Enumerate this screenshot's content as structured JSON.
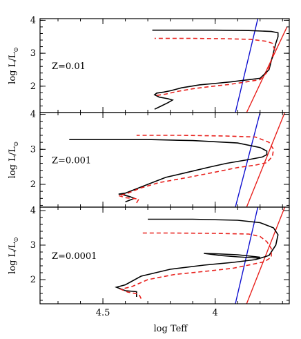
{
  "chart_data": {
    "type": "line",
    "xlabel": "log Teff",
    "ylabel_base": "log L/L",
    "ylabel_sub": "⊙",
    "xlim": [
      4.78,
      3.67
    ],
    "xticks": [
      4.5,
      4.0
    ],
    "xtick_labels": [
      "4.5",
      "4"
    ],
    "colors": {
      "model_a": "#000000",
      "model_b": "#e8201c",
      "blue_edge": "#1010d0",
      "red_edge": "#e8201c"
    },
    "panels": [
      {
        "label": "Z=0.01",
        "ylim": [
          1.2,
          4.05
        ],
        "yticks": [
          2,
          3,
          4
        ],
        "ytick_labels": [
          "2",
          "3",
          "4"
        ],
        "blue_edge": [
          [
            3.91,
            1.2
          ],
          [
            3.81,
            4.05
          ]
        ],
        "red_edge": [
          [
            3.86,
            1.2
          ],
          [
            3.68,
            3.8
          ]
        ],
        "series": [
          {
            "name": "solid",
            "color": "#000000",
            "dashed": false,
            "points": [
              [
                4.27,
                1.3
              ],
              [
                4.24,
                1.4
              ],
              [
                4.21,
                1.5
              ],
              [
                4.19,
                1.58
              ],
              [
                4.21,
                1.62
              ],
              [
                4.25,
                1.67
              ],
              [
                4.27,
                1.74
              ],
              [
                4.26,
                1.79
              ],
              [
                4.23,
                1.82
              ],
              [
                4.2,
                1.86
              ],
              [
                4.15,
                1.95
              ],
              [
                4.07,
                2.04
              ],
              [
                3.99,
                2.09
              ],
              [
                3.93,
                2.13
              ],
              [
                3.87,
                2.18
              ],
              [
                3.8,
                2.24
              ],
              [
                3.76,
                2.5
              ],
              [
                3.745,
                2.9
              ],
              [
                3.73,
                3.3
              ],
              [
                3.72,
                3.5
              ],
              [
                3.72,
                3.62
              ],
              [
                3.75,
                3.66
              ],
              [
                3.85,
                3.69
              ],
              [
                4.0,
                3.7
              ],
              [
                4.15,
                3.7
              ],
              [
                4.28,
                3.7
              ]
            ]
          },
          {
            "name": "dashed",
            "color": "#e8201c",
            "dashed": true,
            "points": [
              [
                4.26,
                1.72
              ],
              [
                4.22,
                1.76
              ],
              [
                4.17,
                1.84
              ],
              [
                4.1,
                1.92
              ],
              [
                4.02,
                1.99
              ],
              [
                3.94,
                2.05
              ],
              [
                3.87,
                2.12
              ],
              [
                3.8,
                2.2
              ],
              [
                3.765,
                2.45
              ],
              [
                3.75,
                2.8
              ],
              [
                3.735,
                3.1
              ],
              [
                3.745,
                3.3
              ],
              [
                3.77,
                3.36
              ],
              [
                3.84,
                3.42
              ],
              [
                3.95,
                3.44
              ],
              [
                4.1,
                3.45
              ],
              [
                4.27,
                3.45
              ]
            ]
          }
        ]
      },
      {
        "label": "Z=0.001",
        "ylim": [
          1.35,
          4.05
        ],
        "yticks": [
          2,
          3,
          4
        ],
        "ytick_labels": [
          "2",
          "3",
          "4"
        ],
        "blue_edge": [
          [
            3.91,
            1.35
          ],
          [
            3.8,
            4.05
          ]
        ],
        "red_edge": [
          [
            3.86,
            1.35
          ],
          [
            3.69,
            4.05
          ]
        ],
        "series": [
          {
            "name": "solid",
            "color": "#000000",
            "dashed": false,
            "points": [
              [
                4.4,
                1.5
              ],
              [
                4.36,
                1.6
              ],
              [
                4.38,
                1.65
              ],
              [
                4.42,
                1.72
              ],
              [
                4.43,
                1.72
              ],
              [
                4.4,
                1.75
              ],
              [
                4.3,
                2.0
              ],
              [
                4.22,
                2.2
              ],
              [
                4.12,
                2.35
              ],
              [
                4.02,
                2.5
              ],
              [
                3.95,
                2.6
              ],
              [
                3.84,
                2.72
              ],
              [
                3.79,
                2.78
              ],
              [
                3.77,
                2.85
              ],
              [
                3.77,
                2.95
              ],
              [
                3.8,
                3.05
              ],
              [
                3.9,
                3.18
              ],
              [
                4.1,
                3.25
              ],
              [
                4.3,
                3.28
              ],
              [
                4.65,
                3.28
              ]
            ]
          },
          {
            "name": "dashed",
            "color": "#e8201c",
            "dashed": true,
            "points": [
              [
                4.35,
                1.47
              ],
              [
                4.34,
                1.58
              ],
              [
                4.4,
                1.62
              ],
              [
                4.43,
                1.68
              ],
              [
                4.4,
                1.72
              ],
              [
                4.33,
                1.9
              ],
              [
                4.25,
                2.05
              ],
              [
                4.12,
                2.2
              ],
              [
                4.0,
                2.35
              ],
              [
                3.9,
                2.48
              ],
              [
                3.82,
                2.55
              ],
              [
                3.77,
                2.62
              ],
              [
                3.745,
                2.8
              ],
              [
                3.74,
                3.0
              ],
              [
                3.76,
                3.2
              ],
              [
                3.82,
                3.35
              ],
              [
                3.95,
                3.38
              ],
              [
                4.15,
                3.4
              ],
              [
                4.35,
                3.4
              ]
            ]
          }
        ]
      },
      {
        "label": "Z=0.0001",
        "ylim": [
          1.3,
          4.1
        ],
        "yticks": [
          2,
          3,
          4
        ],
        "ytick_labels": [
          "2",
          "3",
          "4"
        ],
        "blue_edge": [
          [
            3.91,
            1.3
          ],
          [
            3.81,
            4.1
          ]
        ],
        "red_edge": [
          [
            3.86,
            1.3
          ],
          [
            3.69,
            4.1
          ]
        ],
        "series": [
          {
            "name": "solid",
            "color": "#000000",
            "dashed": false,
            "points": [
              [
                4.35,
                1.5
              ],
              [
                4.35,
                1.65
              ],
              [
                4.4,
                1.68
              ],
              [
                4.44,
                1.78
              ],
              [
                4.4,
                1.85
              ],
              [
                4.33,
                2.1
              ],
              [
                4.2,
                2.3
              ],
              [
                4.05,
                2.42
              ],
              [
                3.92,
                2.5
              ],
              [
                3.82,
                2.58
              ],
              [
                3.76,
                2.7
              ],
              [
                3.73,
                3.0
              ],
              [
                3.72,
                3.3
              ],
              [
                3.74,
                3.5
              ],
              [
                3.8,
                3.65
              ],
              [
                3.9,
                3.72
              ],
              [
                4.1,
                3.75
              ],
              [
                4.3,
                3.75
              ]
            ]
          },
          {
            "name": "solid-loop",
            "color": "#000000",
            "dashed": false,
            "points": [
              [
                3.8,
                2.65
              ],
              [
                3.9,
                2.72
              ],
              [
                4.0,
                2.75
              ],
              [
                4.05,
                2.76
              ],
              [
                3.98,
                2.7
              ],
              [
                3.9,
                2.66
              ],
              [
                3.8,
                2.62
              ]
            ]
          },
          {
            "name": "dashed",
            "color": "#e8201c",
            "dashed": true,
            "points": [
              [
                4.33,
                1.45
              ],
              [
                4.34,
                1.58
              ],
              [
                4.39,
                1.64
              ],
              [
                4.42,
                1.72
              ],
              [
                4.37,
                1.8
              ],
              [
                4.3,
                2.0
              ],
              [
                4.18,
                2.15
              ],
              [
                4.03,
                2.25
              ],
              [
                3.92,
                2.33
              ],
              [
                3.83,
                2.45
              ],
              [
                3.78,
                2.52
              ],
              [
                3.75,
                2.65
              ],
              [
                3.75,
                2.9
              ],
              [
                3.77,
                3.1
              ],
              [
                3.8,
                3.25
              ],
              [
                3.85,
                3.32
              ],
              [
                4.0,
                3.34
              ],
              [
                4.2,
                3.35
              ],
              [
                4.33,
                3.35
              ]
            ]
          }
        ]
      }
    ]
  }
}
